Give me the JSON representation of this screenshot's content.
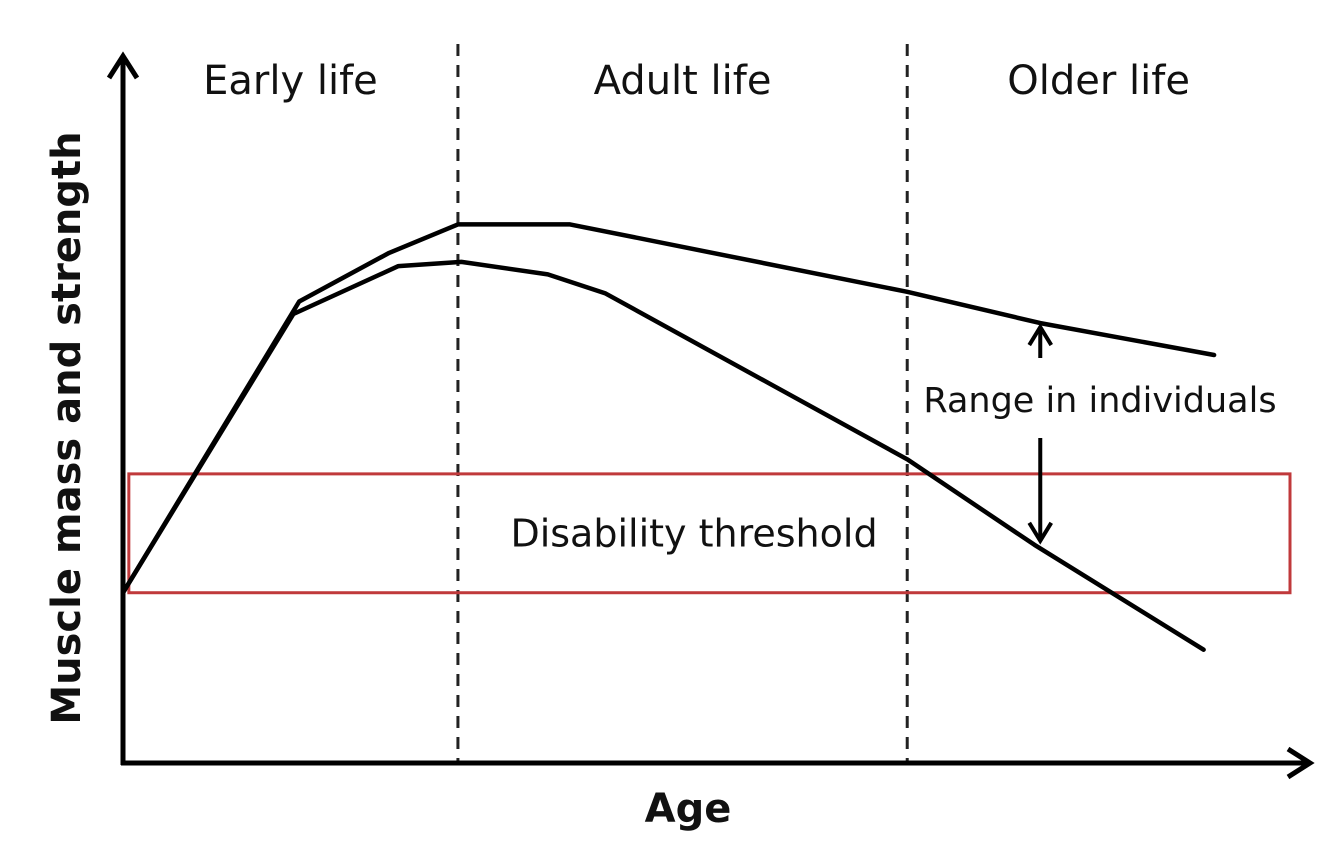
{
  "chart_data": {
    "type": "line",
    "title": "",
    "xlabel": "Age",
    "ylabel": "Muscle mass and strength",
    "axis_ticks": false,
    "grid": false,
    "xlim": [
      0,
      100
    ],
    "ylim": [
      0,
      100
    ],
    "life_stages": [
      {
        "label": "Early life",
        "from": 0,
        "to": 28.7
      },
      {
        "label": "Adult life",
        "from": 28.7,
        "to": 67.2
      },
      {
        "label": "Older life",
        "from": 67.2,
        "to": 100
      }
    ],
    "stage_dividers": [
      28.7,
      67.2
    ],
    "series": [
      {
        "x": [
          0,
          15.1,
          22.8,
          28.7,
          38.3,
          67.2,
          78.6,
          93.5
        ],
        "y": [
          24.5,
          66.4,
          73.4,
          77.5,
          77.5,
          67.8,
          63.3,
          58.7
        ]
      },
      {
        "x": [
          0,
          14.6,
          23.6,
          29.0,
          36.4,
          41.3,
          67.2,
          78.1,
          92.6
        ],
        "y": [
          24.5,
          64.6,
          71.5,
          72.1,
          70.3,
          67.6,
          43.7,
          31.4,
          16.3
        ]
      }
    ],
    "threshold_band": {
      "label": "Disability threshold",
      "y_range": [
        24.5,
        41.6
      ],
      "x_range": [
        0.5,
        100
      ]
    },
    "annotation": {
      "text": "Range in individuals",
      "x": 78.6,
      "y_top": 63.3,
      "y_bottom": 31.4
    }
  },
  "colors": {
    "line": "#000000",
    "axis": "#000000",
    "threshold_band": "#c0393b",
    "divider": "#222222"
  }
}
